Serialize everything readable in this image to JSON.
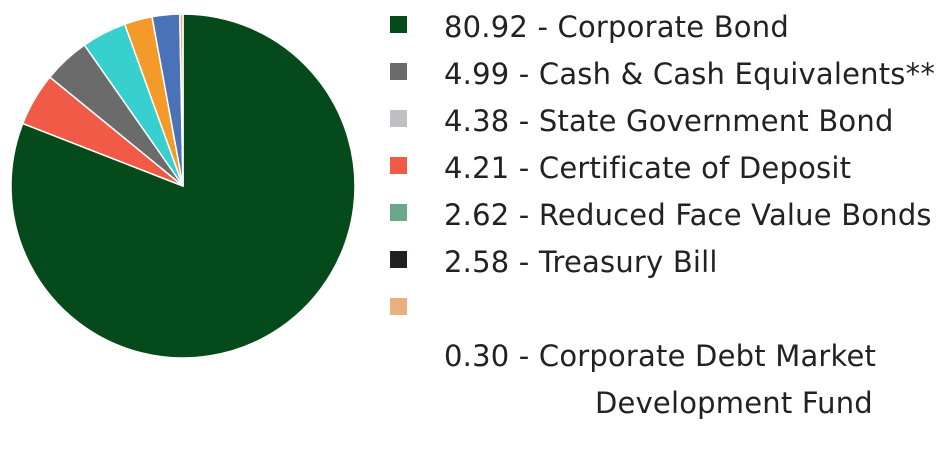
{
  "chart_data": {
    "type": "pie",
    "title": "",
    "slices": [
      {
        "value": 80.92,
        "label": "80.92 - Corporate Bond",
        "color": "#054a1a"
      },
      {
        "value": 4.99,
        "label": "4.99 - Cash & Cash Equivalents**",
        "color": "#6b6b6b"
      },
      {
        "value": 4.38,
        "label": "4.38 - State Government Bond",
        "color": "#bdbfc3"
      },
      {
        "value": 4.21,
        "label": "4.21 - Certificate of Deposit",
        "color": "#f05a46"
      },
      {
        "value": 2.62,
        "label": "2.62 - Reduced Face Value Bonds",
        "color": "#6ba88a"
      },
      {
        "value": 2.58,
        "label": "2.58 - Treasury Bill",
        "color": "#231f20"
      },
      {
        "value": 0.3,
        "label": "0.30 - Corporate Debt Market",
        "label_line2": "Development Fund",
        "color": "#e8b07c"
      }
    ],
    "pie_slices_clockwise_from_top": [
      {
        "value": 80.92,
        "color": "#054a1a"
      },
      {
        "value": 4.99,
        "color": "#f05a46"
      },
      {
        "value": 4.38,
        "color": "#6b6b6b"
      },
      {
        "value": 4.21,
        "color": "#38cfcf"
      },
      {
        "value": 2.62,
        "color": "#f39a2b"
      },
      {
        "value": 2.58,
        "color": "#4a72b8"
      },
      {
        "value": 0.3,
        "color": "#e8b07c"
      }
    ],
    "legend_position": "right",
    "grid": false
  }
}
